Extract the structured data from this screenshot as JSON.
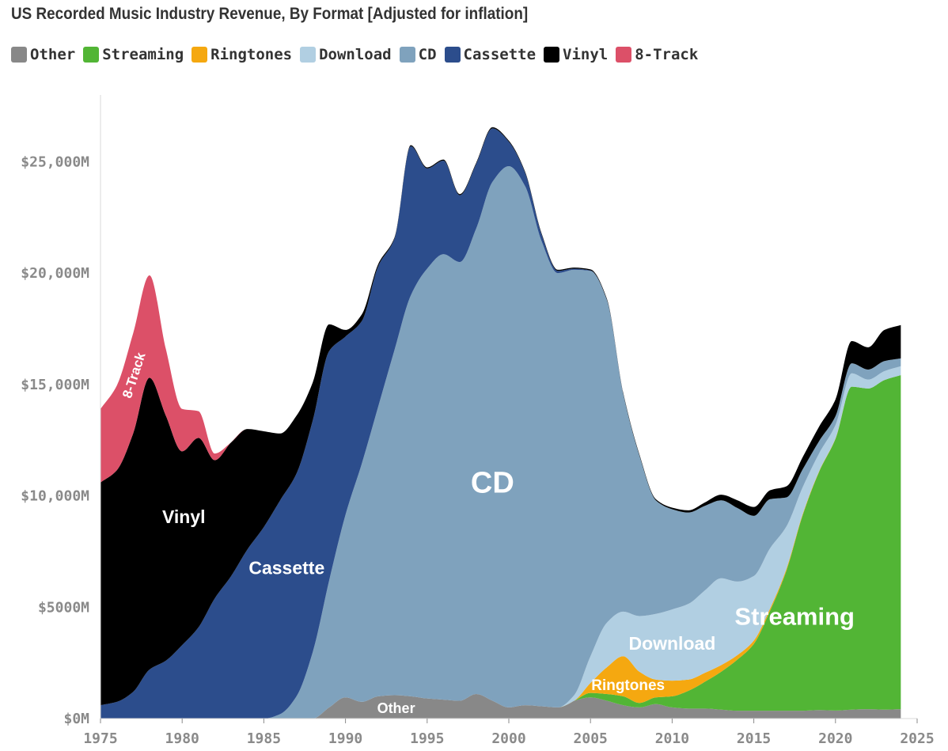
{
  "chart_data": {
    "type": "area",
    "stacked": true,
    "title": "US Recorded Music Industry Revenue, By Format [Adjusted for inflation]",
    "xlabel": "",
    "ylabel": "",
    "xlim": [
      1975,
      2025
    ],
    "ylim": [
      0,
      28000
    ],
    "x_ticks": [
      {
        "value": 1975,
        "label": "1975"
      },
      {
        "value": 1980,
        "label": "1980"
      },
      {
        "value": 1985,
        "label": "1985"
      },
      {
        "value": 1990,
        "label": "1990"
      },
      {
        "value": 1995,
        "label": "1995"
      },
      {
        "value": 2000,
        "label": "2000"
      },
      {
        "value": 2005,
        "label": "2005"
      },
      {
        "value": 2010,
        "label": "2010"
      },
      {
        "value": 2015,
        "label": "2015"
      },
      {
        "value": 2020,
        "label": "2020"
      },
      {
        "value": 2025,
        "label": "2025"
      }
    ],
    "y_ticks": [
      {
        "value": 0,
        "label": "$0M"
      },
      {
        "value": 5000,
        "label": "$5000M"
      },
      {
        "value": 10000,
        "label": "$10,000M"
      },
      {
        "value": 15000,
        "label": "$15,000M"
      },
      {
        "value": 20000,
        "label": "$20,000M"
      },
      {
        "value": 25000,
        "label": "$25,000M"
      }
    ],
    "legend": [
      {
        "name": "Other",
        "color": "#888888"
      },
      {
        "name": "Streaming",
        "color": "#52b535"
      },
      {
        "name": "Ringtones",
        "color": "#f5a810"
      },
      {
        "name": "Download",
        "color": "#b1cfe2"
      },
      {
        "name": "CD",
        "color": "#7fa2bd"
      },
      {
        "name": "Cassette",
        "color": "#2c4d8c"
      },
      {
        "name": "Vinyl",
        "color": "#000000"
      },
      {
        "name": "8-Track",
        "color": "#dc5068"
      }
    ],
    "x": [
      1975,
      1976,
      1977,
      1978,
      1979,
      1980,
      1981,
      1982,
      1983,
      1984,
      1985,
      1986,
      1987,
      1988,
      1989,
      1990,
      1991,
      1992,
      1993,
      1994,
      1995,
      1996,
      1997,
      1998,
      1999,
      2000,
      2001,
      2002,
      2003,
      2004,
      2005,
      2006,
      2007,
      2008,
      2009,
      2010,
      2011,
      2012,
      2013,
      2014,
      2015,
      2016,
      2017,
      2018,
      2019,
      2020,
      2021,
      2022,
      2023,
      2024
    ],
    "series": [
      {
        "name": "Other",
        "color": "#888888",
        "values": [
          0,
          0,
          0,
          0,
          0,
          0,
          0,
          0,
          0,
          0,
          0,
          0,
          0,
          0,
          500,
          950,
          750,
          1000,
          1050,
          1000,
          900,
          850,
          800,
          1100,
          800,
          500,
          600,
          550,
          500,
          800,
          950,
          800,
          600,
          500,
          650,
          500,
          450,
          450,
          400,
          350,
          350,
          350,
          350,
          350,
          380,
          360,
          400,
          420,
          400,
          420
        ]
      },
      {
        "name": "Streaming",
        "color": "#52b535",
        "values": [
          0,
          0,
          0,
          0,
          0,
          0,
          0,
          0,
          0,
          0,
          0,
          0,
          0,
          0,
          0,
          0,
          0,
          0,
          0,
          0,
          0,
          0,
          0,
          0,
          0,
          0,
          0,
          0,
          0,
          0,
          200,
          300,
          400,
          200,
          300,
          500,
          800,
          1200,
          1700,
          2300,
          3000,
          4500,
          6300,
          8800,
          10700,
          12200,
          14500,
          14400,
          14800,
          15000
        ]
      },
      {
        "name": "Ringtones",
        "color": "#f5a810",
        "values": [
          0,
          0,
          0,
          0,
          0,
          0,
          0,
          0,
          0,
          0,
          0,
          0,
          0,
          0,
          0,
          0,
          0,
          0,
          0,
          0,
          0,
          0,
          0,
          0,
          0,
          0,
          0,
          0,
          0,
          0,
          450,
          1200,
          1800,
          1400,
          800,
          700,
          500,
          400,
          300,
          200,
          150,
          100,
          80,
          50,
          30,
          20,
          0,
          0,
          0,
          0
        ]
      },
      {
        "name": "Download",
        "color": "#b1cfe2",
        "values": [
          0,
          0,
          0,
          0,
          0,
          0,
          0,
          0,
          0,
          0,
          0,
          0,
          0,
          0,
          0,
          0,
          0,
          0,
          0,
          0,
          0,
          0,
          0,
          0,
          0,
          0,
          0,
          0,
          0,
          250,
          1200,
          2000,
          2000,
          2500,
          2950,
          3200,
          3400,
          3700,
          3900,
          3300,
          2900,
          2700,
          1900,
          1200,
          800,
          600,
          600,
          400,
          400,
          400
        ]
      },
      {
        "name": "CD",
        "color": "#7fa2bd",
        "values": [
          0,
          0,
          0,
          0,
          0,
          0,
          0,
          0,
          0,
          0,
          0,
          200,
          1000,
          3000,
          5700,
          8200,
          10700,
          13000,
          15500,
          18000,
          19300,
          20000,
          19700,
          20900,
          23300,
          24300,
          23300,
          20900,
          19500,
          19100,
          17300,
          14500,
          9800,
          7200,
          5100,
          4500,
          4100,
          3800,
          3500,
          3300,
          2700,
          2200,
          1300,
          800,
          550,
          400,
          450,
          450,
          450,
          350
        ]
      },
      {
        "name": "Cassette",
        "color": "#2c4d8c",
        "values": [
          600,
          750,
          1200,
          2200,
          2600,
          3300,
          4100,
          5400,
          6400,
          7600,
          8600,
          9600,
          10000,
          10400,
          10300,
          8000,
          6400,
          6300,
          5000,
          6700,
          4500,
          4200,
          3000,
          2900,
          2400,
          1100,
          600,
          300,
          100,
          50,
          20,
          10,
          0,
          0,
          0,
          0,
          0,
          0,
          0,
          0,
          0,
          0,
          0,
          0,
          0,
          0,
          0,
          0,
          0,
          0
        ]
      },
      {
        "name": "Vinyl",
        "color": "#000000",
        "values": [
          10000,
          10400,
          11600,
          13100,
          11000,
          8700,
          8500,
          6200,
          6000,
          5400,
          4300,
          3000,
          2600,
          1700,
          1200,
          300,
          300,
          100,
          50,
          50,
          50,
          50,
          50,
          50,
          50,
          50,
          50,
          50,
          50,
          50,
          50,
          50,
          50,
          50,
          50,
          70,
          100,
          150,
          250,
          350,
          400,
          400,
          500,
          550,
          650,
          750,
          1000,
          1000,
          1400,
          1500
        ]
      },
      {
        "name": "8-Track",
        "color": "#dc5068",
        "values": [
          3300,
          3800,
          4500,
          4600,
          3000,
          1900,
          1200,
          300,
          0,
          0,
          0,
          0,
          0,
          0,
          0,
          0,
          0,
          0,
          0,
          0,
          0,
          0,
          0,
          0,
          0,
          0,
          0,
          0,
          0,
          0,
          0,
          0,
          0,
          0,
          0,
          0,
          0,
          0,
          0,
          0,
          0,
          0,
          0,
          0,
          0,
          0,
          0,
          0,
          0,
          0
        ]
      }
    ],
    "area_labels": [
      {
        "text": "8-Track",
        "x": 1977.1,
        "y": 15400,
        "rotate": -72,
        "size": 17
      },
      {
        "text": "Vinyl",
        "x": 1980.1,
        "y": 9000,
        "rotate": 0,
        "size": 23
      },
      {
        "text": "Cassette",
        "x": 1986.4,
        "y": 6700,
        "rotate": 0,
        "size": 23
      },
      {
        "text": "CD",
        "x": 1999.0,
        "y": 10500,
        "rotate": 0,
        "size": 38
      },
      {
        "text": "Download",
        "x": 2010.0,
        "y": 3300,
        "rotate": 0,
        "size": 23
      },
      {
        "text": "Ringtones",
        "x": 2007.3,
        "y": 1450,
        "rotate": 0,
        "size": 19
      },
      {
        "text": "Streaming",
        "x": 2017.5,
        "y": 4500,
        "rotate": 0,
        "size": 31
      },
      {
        "text": "Other",
        "x": 1993.1,
        "y": 420,
        "rotate": 0,
        "size": 18
      }
    ]
  }
}
